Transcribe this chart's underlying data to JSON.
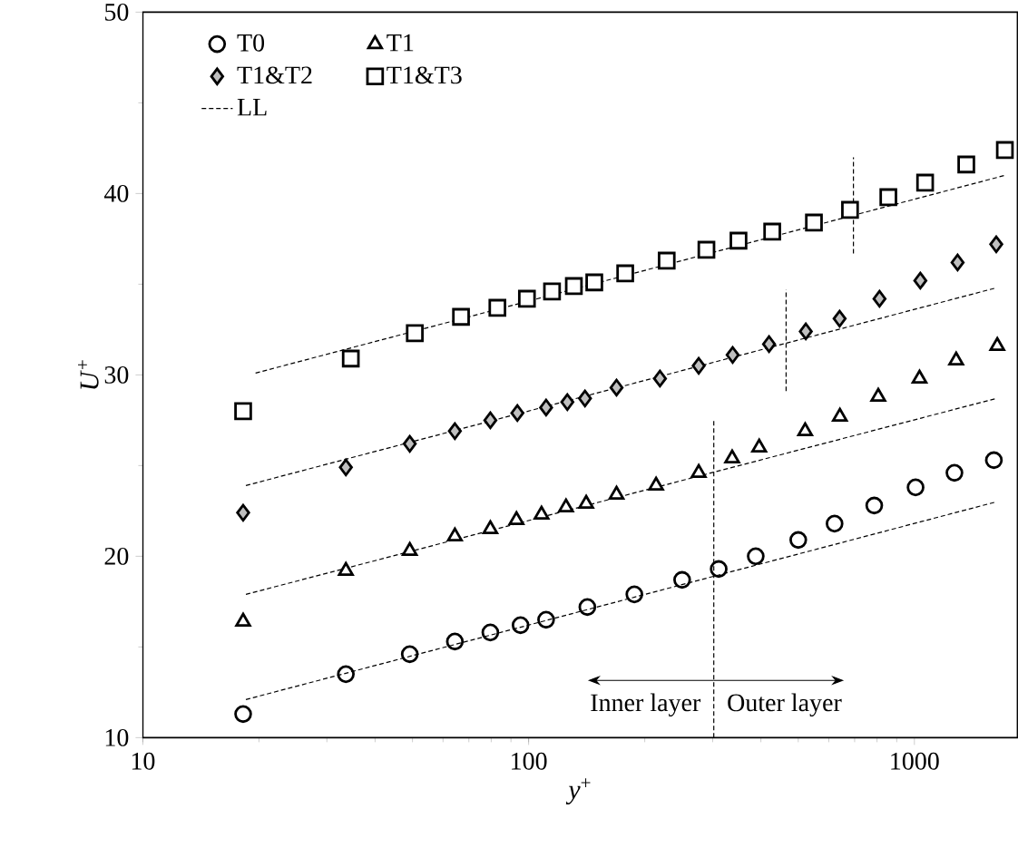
{
  "chart_data": {
    "type": "scatter",
    "xlabel": "*y*$^{+}$",
    "ylabel": "*U*$^{+}$",
    "log": "x",
    "xlim": [
      10,
      1850
    ],
    "ylim": [
      10,
      50
    ],
    "xticks": [
      10,
      100,
      1000
    ],
    "yticks": [
      10,
      20,
      30,
      40,
      50
    ],
    "legend": "top left",
    "series": [
      {
        "name": "T0",
        "marker": "circle",
        "color": "#000000",
        "x": [
          18.2,
          33.6,
          49.2,
          64.4,
          79.6,
          95.3,
          111,
          142,
          188,
          250,
          311,
          388,
          500,
          621,
          787,
          1007,
          1270,
          1607
        ],
        "values": [
          11.3,
          13.5,
          14.6,
          15.3,
          15.8,
          16.2,
          16.5,
          17.2,
          17.9,
          18.7,
          19.3,
          20.0,
          20.9,
          21.8,
          22.8,
          23.8,
          24.6,
          25.3
        ]
      },
      {
        "name": "T1",
        "marker": "triangle",
        "color": "#000000",
        "x": [
          18.2,
          33.6,
          49.2,
          64.4,
          79.6,
          93,
          108,
          125,
          141,
          169,
          214,
          276,
          337,
          396,
          521,
          641,
          806,
          1031,
          1283,
          1640
        ],
        "values": [
          16.4,
          19.2,
          20.3,
          21.1,
          21.5,
          22.0,
          22.3,
          22.7,
          22.9,
          23.4,
          23.9,
          24.6,
          25.4,
          26.0,
          26.9,
          27.7,
          28.8,
          29.8,
          30.8,
          31.6
        ]
      },
      {
        "name": "T1&T2",
        "marker": "diamond",
        "color": "#bfbfbf",
        "x": [
          18.2,
          33.6,
          49.2,
          64.4,
          79.6,
          93.5,
          111,
          126,
          140,
          169,
          219,
          276,
          338,
          420,
          523,
          640,
          812,
          1036,
          1294,
          1630
        ],
        "values": [
          22.4,
          24.9,
          26.2,
          26.9,
          27.5,
          27.9,
          28.2,
          28.5,
          28.7,
          29.3,
          29.8,
          30.5,
          31.1,
          31.7,
          32.4,
          33.1,
          34.2,
          35.2,
          36.2,
          37.2
        ]
      },
      {
        "name": "T1&T3",
        "marker": "square",
        "color": "#000000",
        "x": [
          18.2,
          34.6,
          50.7,
          66.8,
          83,
          99,
          115,
          131,
          148,
          178,
          228,
          289,
          350,
          428,
          549,
          681,
          856,
          1066,
          1363,
          1716
        ],
        "values": [
          28.0,
          30.9,
          32.3,
          33.2,
          33.7,
          34.2,
          34.6,
          34.9,
          35.1,
          35.6,
          36.3,
          36.9,
          37.4,
          37.9,
          38.4,
          39.1,
          39.8,
          40.6,
          41.6,
          42.4
        ]
      },
      {
        "name": "LL",
        "type": "line",
        "line_style": "dashed",
        "marker": "none",
        "color": "#000000",
        "x": [
          18.5,
          1630
        ],
        "values": [
          12.1,
          23.0
        ]
      },
      {
        "type": "line",
        "line_style": "dashed",
        "marker": "none",
        "color": "#000000",
        "x": [
          18.5,
          1630
        ],
        "values": [
          17.9,
          28.7
        ]
      },
      {
        "type": "line",
        "line_style": "dashed",
        "marker": "none",
        "color": "#000000",
        "x": [
          18.5,
          1630
        ],
        "values": [
          23.9,
          34.8
        ]
      },
      {
        "type": "line",
        "line_style": "dashed",
        "marker": "none",
        "color": "#000000",
        "x": [
          19.6,
          1716
        ],
        "values": [
          30.1,
          41.0
        ]
      },
      {
        "type": "line",
        "line_style": "dashed",
        "marker": "none",
        "color": "#000000",
        "x": [
          302,
          302
        ],
        "values": [
          10,
          27.5
        ]
      },
      {
        "type": "line",
        "line_style": "dashed",
        "marker": "none",
        "color": "#000000",
        "x": [
          465,
          465
        ],
        "values": [
          29.1,
          34.7
        ]
      },
      {
        "type": "line",
        "line_style": "dashed",
        "marker": "none",
        "color": "#000000",
        "x": [
          695,
          695
        ],
        "values": [
          36.7,
          42.0
        ]
      }
    ],
    "annotations": [
      "Inner layer",
      "Outer layer"
    ]
  }
}
